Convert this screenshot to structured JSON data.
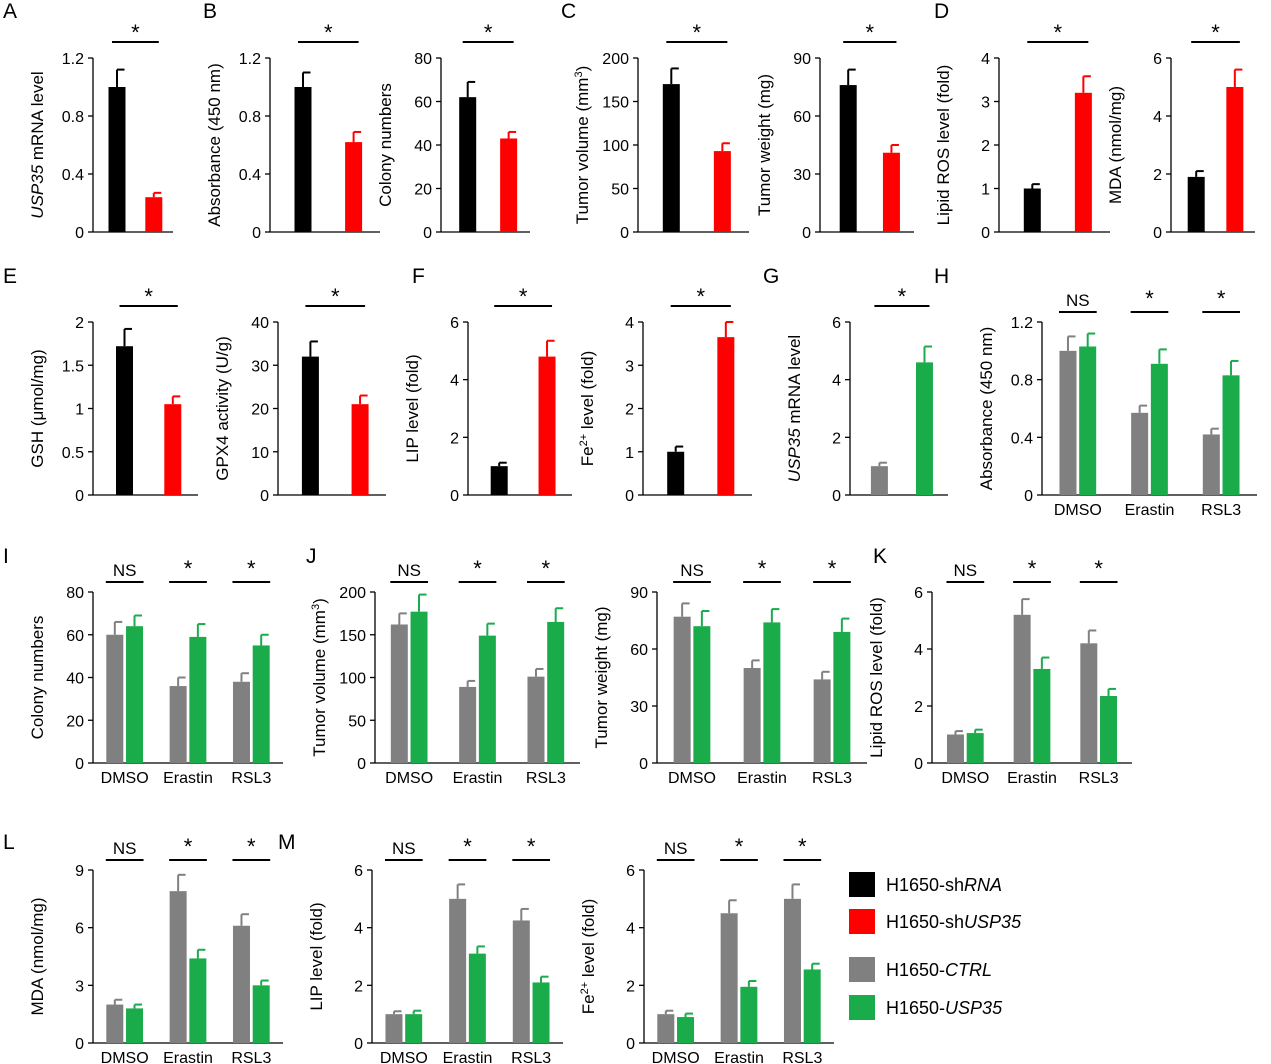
{
  "colors": {
    "black": "#000000",
    "red": "#ff0000",
    "gray": "#808080",
    "green": "#1aab4b"
  },
  "panel_letters": [
    "A",
    "B",
    "C",
    "D",
    "E",
    "F",
    "G",
    "H",
    "I",
    "J",
    "K",
    "L",
    "M"
  ],
  "legend": [
    {
      "prefix": "H1650-sh",
      "italic": "RNA",
      "suffix": "",
      "color": "black"
    },
    {
      "prefix": "H1650-sh",
      "italic": "USP35",
      "suffix": "",
      "color": "red"
    },
    {
      "prefix": "H1650-",
      "italic": "CTRL",
      "suffix": "",
      "color": "gray"
    },
    {
      "prefix": "H1650-",
      "italic": "USP35",
      "suffix": "",
      "color": "green"
    }
  ],
  "chart_data": [
    {
      "id": "A-mrna",
      "type": "bar",
      "ylabel": [
        {
          "t": "USP35",
          "i": true
        },
        {
          "t": " mRNA level"
        }
      ],
      "ylim": [
        0,
        1.2
      ],
      "ticks": [
        "0",
        "0.4",
        "0.8",
        "1.2"
      ],
      "series": [
        {
          "color": "black",
          "values": [
            1.0
          ],
          "errors": [
            0.12
          ]
        },
        {
          "color": "red",
          "values": [
            0.24
          ],
          "errors": [
            0.03
          ]
        }
      ],
      "annotations": [
        "*"
      ]
    },
    {
      "id": "B-absorbance",
      "type": "bar",
      "ylabel": [
        {
          "t": "Absorbance (450 nm)"
        }
      ],
      "ylim": [
        0,
        1.2
      ],
      "ticks": [
        "0",
        "0.4",
        "0.8",
        "1.2"
      ],
      "series": [
        {
          "color": "black",
          "values": [
            1.0
          ],
          "errors": [
            0.1
          ]
        },
        {
          "color": "red",
          "values": [
            0.62
          ],
          "errors": [
            0.07
          ]
        }
      ],
      "annotations": [
        "*"
      ]
    },
    {
      "id": "B-colony",
      "type": "bar",
      "ylabel": [
        {
          "t": "Colony numbers"
        }
      ],
      "ylim": [
        0,
        80
      ],
      "ticks": [
        "0",
        "20",
        "40",
        "60",
        "80"
      ],
      "series": [
        {
          "color": "black",
          "values": [
            62
          ],
          "errors": [
            7
          ]
        },
        {
          "color": "red",
          "values": [
            43
          ],
          "errors": [
            3
          ]
        }
      ],
      "annotations": [
        "*"
      ]
    },
    {
      "id": "C-volume",
      "type": "bar",
      "ylabel": [
        {
          "t": "Tumor volume (mm"
        },
        {
          "t": "3",
          "s": true
        },
        {
          "t": ")"
        }
      ],
      "ylim": [
        0,
        200
      ],
      "ticks": [
        "0",
        "50",
        "100",
        "150",
        "200"
      ],
      "series": [
        {
          "color": "black",
          "values": [
            170
          ],
          "errors": [
            18
          ]
        },
        {
          "color": "red",
          "values": [
            93
          ],
          "errors": [
            9
          ]
        }
      ],
      "annotations": [
        "*"
      ]
    },
    {
      "id": "C-weight",
      "type": "bar",
      "ylabel": [
        {
          "t": "Tumor weight (mg)"
        }
      ],
      "ylim": [
        0,
        90
      ],
      "ticks": [
        "0",
        "30",
        "60",
        "90"
      ],
      "series": [
        {
          "color": "black",
          "values": [
            76
          ],
          "errors": [
            8
          ]
        },
        {
          "color": "red",
          "values": [
            41
          ],
          "errors": [
            4
          ]
        }
      ],
      "annotations": [
        "*"
      ]
    },
    {
      "id": "D-ros",
      "type": "bar",
      "ylabel": [
        {
          "t": "Lipid ROS level (fold)"
        }
      ],
      "ylim": [
        0,
        4
      ],
      "ticks": [
        "0",
        "1",
        "2",
        "3",
        "4"
      ],
      "series": [
        {
          "color": "black",
          "values": [
            1.0
          ],
          "errors": [
            0.1
          ]
        },
        {
          "color": "red",
          "values": [
            3.2
          ],
          "errors": [
            0.38
          ]
        }
      ],
      "annotations": [
        "*"
      ]
    },
    {
      "id": "D-mda",
      "type": "bar",
      "ylabel": [
        {
          "t": "MDA (nmol/mg)"
        }
      ],
      "ylim": [
        0,
        6
      ],
      "ticks": [
        "0",
        "2",
        "4",
        "6"
      ],
      "series": [
        {
          "color": "black",
          "values": [
            1.9
          ],
          "errors": [
            0.2
          ]
        },
        {
          "color": "red",
          "values": [
            5.0
          ],
          "errors": [
            0.6
          ]
        }
      ],
      "annotations": [
        "*"
      ]
    },
    {
      "id": "E-gsh",
      "type": "bar",
      "ylabel": [
        {
          "t": "GSH (μmol/mg)"
        }
      ],
      "ylim": [
        0,
        2
      ],
      "ticks": [
        "0",
        "0.5",
        "1",
        "1.5",
        "2"
      ],
      "series": [
        {
          "color": "black",
          "values": [
            1.72
          ],
          "errors": [
            0.2
          ]
        },
        {
          "color": "red",
          "values": [
            1.05
          ],
          "errors": [
            0.09
          ]
        }
      ],
      "annotations": [
        "*"
      ]
    },
    {
      "id": "E-gpx4",
      "type": "bar",
      "ylabel": [
        {
          "t": "GPX4 activity (U/g)"
        }
      ],
      "ylim": [
        0,
        40
      ],
      "ticks": [
        "0",
        "10",
        "20",
        "30",
        "40"
      ],
      "series": [
        {
          "color": "black",
          "values": [
            32
          ],
          "errors": [
            3.5
          ]
        },
        {
          "color": "red",
          "values": [
            21
          ],
          "errors": [
            2
          ]
        }
      ],
      "annotations": [
        "*"
      ]
    },
    {
      "id": "F-lip",
      "type": "bar",
      "ylabel": [
        {
          "t": "LIP level (fold)"
        }
      ],
      "ylim": [
        0,
        6
      ],
      "ticks": [
        "0",
        "2",
        "4",
        "6"
      ],
      "series": [
        {
          "color": "black",
          "values": [
            1.0
          ],
          "errors": [
            0.12
          ]
        },
        {
          "color": "red",
          "values": [
            4.8
          ],
          "errors": [
            0.55
          ]
        }
      ],
      "annotations": [
        "*"
      ]
    },
    {
      "id": "F-fe",
      "type": "bar",
      "ylabel": [
        {
          "t": "Fe"
        },
        {
          "t": "2+",
          "s": true
        },
        {
          "t": " level (fold)"
        }
      ],
      "ylim": [
        0,
        4
      ],
      "ticks": [
        "0",
        "1",
        "2",
        "3",
        "4"
      ],
      "series": [
        {
          "color": "black",
          "values": [
            1.0
          ],
          "errors": [
            0.12
          ]
        },
        {
          "color": "red",
          "values": [
            3.65
          ],
          "errors": [
            0.35
          ]
        }
      ],
      "annotations": [
        "*"
      ]
    },
    {
      "id": "G-mrna",
      "type": "bar",
      "ylabel": [
        {
          "t": "USP35",
          "i": true
        },
        {
          "t": " mRNA level"
        }
      ],
      "ylim": [
        0,
        6
      ],
      "ticks": [
        "0",
        "2",
        "4",
        "6"
      ],
      "series": [
        {
          "color": "gray",
          "values": [
            1.0
          ],
          "errors": [
            0.12
          ]
        },
        {
          "color": "green",
          "values": [
            4.6
          ],
          "errors": [
            0.55
          ]
        }
      ],
      "annotations": [
        "*"
      ]
    },
    {
      "id": "H-absorbance",
      "type": "bar",
      "categories": [
        "DMSO",
        "Erastin",
        "RSL3"
      ],
      "ylabel": [
        {
          "t": "Absorbance (450 nm)"
        }
      ],
      "ylim": [
        0,
        1.2
      ],
      "ticks": [
        "0",
        "0.4",
        "0.8",
        "1.2"
      ],
      "series": [
        {
          "color": "gray",
          "values": [
            1.0,
            0.57,
            0.42
          ],
          "errors": [
            0.1,
            0.05,
            0.04
          ]
        },
        {
          "color": "green",
          "values": [
            1.03,
            0.91,
            0.83
          ],
          "errors": [
            0.09,
            0.1,
            0.1
          ]
        }
      ],
      "annotations": [
        "NS",
        "*",
        "*"
      ]
    },
    {
      "id": "I-colony",
      "type": "bar",
      "categories": [
        "DMSO",
        "Erastin",
        "RSL3"
      ],
      "ylabel": [
        {
          "t": "Colony numbers"
        }
      ],
      "ylim": [
        0,
        80
      ],
      "ticks": [
        "0",
        "20",
        "40",
        "60",
        "80"
      ],
      "series": [
        {
          "color": "gray",
          "values": [
            60,
            36,
            38
          ],
          "errors": [
            6,
            4,
            4
          ]
        },
        {
          "color": "green",
          "values": [
            64,
            59,
            55
          ],
          "errors": [
            5,
            6,
            5
          ]
        }
      ],
      "annotations": [
        "NS",
        "*",
        "*"
      ]
    },
    {
      "id": "J-volume",
      "type": "bar",
      "categories": [
        "DMSO",
        "Erastin",
        "RSL3"
      ],
      "ylabel": [
        {
          "t": "Tumor volume (mm"
        },
        {
          "t": "3",
          "s": true
        },
        {
          "t": ")"
        }
      ],
      "ylim": [
        0,
        200
      ],
      "ticks": [
        "0",
        "50",
        "100",
        "150",
        "200"
      ],
      "series": [
        {
          "color": "gray",
          "values": [
            162,
            89,
            101
          ],
          "errors": [
            13,
            7,
            9
          ]
        },
        {
          "color": "green",
          "values": [
            177,
            149,
            165
          ],
          "errors": [
            20,
            14,
            16
          ]
        }
      ],
      "annotations": [
        "NS",
        "*",
        "*"
      ]
    },
    {
      "id": "J-weight",
      "type": "bar",
      "categories": [
        "DMSO",
        "Erastin",
        "RSL3"
      ],
      "ylabel": [
        {
          "t": "Tumor weight (mg)"
        }
      ],
      "ylim": [
        0,
        90
      ],
      "ticks": [
        "0",
        "30",
        "60",
        "90"
      ],
      "series": [
        {
          "color": "gray",
          "values": [
            77,
            50,
            44
          ],
          "errors": [
            7,
            4,
            4
          ]
        },
        {
          "color": "green",
          "values": [
            72,
            74,
            69
          ],
          "errors": [
            8,
            7,
            7
          ]
        }
      ],
      "annotations": [
        "NS",
        "*",
        "*"
      ]
    },
    {
      "id": "K-ros",
      "type": "bar",
      "categories": [
        "DMSO",
        "Erastin",
        "RSL3"
      ],
      "ylabel": [
        {
          "t": "Lipid ROS level (fold)"
        }
      ],
      "ylim": [
        0,
        6
      ],
      "ticks": [
        "0",
        "2",
        "4",
        "6"
      ],
      "series": [
        {
          "color": "gray",
          "values": [
            1.0,
            5.2,
            4.2
          ],
          "errors": [
            0.12,
            0.55,
            0.45
          ]
        },
        {
          "color": "green",
          "values": [
            1.05,
            3.3,
            2.35
          ],
          "errors": [
            0.12,
            0.4,
            0.25
          ]
        }
      ],
      "annotations": [
        "NS",
        "*",
        "*"
      ]
    },
    {
      "id": "L-mda",
      "type": "bar",
      "categories": [
        "DMSO",
        "Erastin",
        "RSL3"
      ],
      "ylabel": [
        {
          "t": "MDA (nmol/mg)"
        }
      ],
      "ylim": [
        0,
        9
      ],
      "ticks": [
        "0",
        "3",
        "6",
        "9"
      ],
      "series": [
        {
          "color": "gray",
          "values": [
            2.0,
            7.9,
            6.1
          ],
          "errors": [
            0.25,
            0.85,
            0.6
          ]
        },
        {
          "color": "green",
          "values": [
            1.8,
            4.4,
            3.0
          ],
          "errors": [
            0.2,
            0.45,
            0.25
          ]
        }
      ],
      "annotations": [
        "NS",
        "*",
        "*"
      ]
    },
    {
      "id": "M-lip",
      "type": "bar",
      "categories": [
        "DMSO",
        "Erastin",
        "RSL3"
      ],
      "ylabel": [
        {
          "t": "LIP level (fold)"
        }
      ],
      "ylim": [
        0,
        6
      ],
      "ticks": [
        "0",
        "2",
        "4",
        "6"
      ],
      "series": [
        {
          "color": "gray",
          "values": [
            1.0,
            5.0,
            4.25
          ],
          "errors": [
            0.1,
            0.5,
            0.4
          ]
        },
        {
          "color": "green",
          "values": [
            1.0,
            3.1,
            2.1
          ],
          "errors": [
            0.12,
            0.25,
            0.2
          ]
        }
      ],
      "annotations": [
        "NS",
        "*",
        "*"
      ]
    },
    {
      "id": "M-fe",
      "type": "bar",
      "categories": [
        "DMSO",
        "Erastin",
        "RSL3"
      ],
      "ylabel": [
        {
          "t": "Fe"
        },
        {
          "t": "2+",
          "s": true
        },
        {
          "t": " level (fold)"
        }
      ],
      "ylim": [
        0,
        6
      ],
      "ticks": [
        "0",
        "2",
        "4",
        "6"
      ],
      "series": [
        {
          "color": "gray",
          "values": [
            1.0,
            4.5,
            5.0
          ],
          "errors": [
            0.12,
            0.45,
            0.5
          ]
        },
        {
          "color": "green",
          "values": [
            0.9,
            1.95,
            2.55
          ],
          "errors": [
            0.12,
            0.2,
            0.2
          ]
        }
      ],
      "annotations": [
        "NS",
        "*",
        "*"
      ]
    }
  ]
}
